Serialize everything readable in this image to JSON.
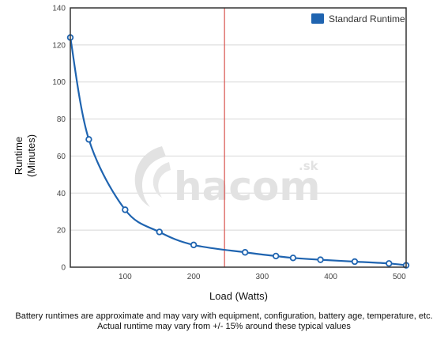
{
  "chart_data": {
    "type": "line",
    "xlabel": "Load (Watts)",
    "ylabel_lines": [
      "Runtime",
      "(Minutes)"
    ],
    "xlim": [
      20,
      510
    ],
    "ylim": [
      0,
      140
    ],
    "x_ticks": [
      100,
      200,
      300,
      400,
      500
    ],
    "y_ticks": [
      0,
      20,
      40,
      60,
      80,
      100,
      120,
      140
    ],
    "grid": "horizontal",
    "legend_position": "top-right",
    "marker_line_x": 245,
    "series": [
      {
        "name": "Standard Runtime",
        "color": "#1f64b0",
        "x": [
          20,
          47,
          100,
          150,
          200,
          275,
          320,
          345,
          385,
          435,
          485,
          510
        ],
        "y": [
          124,
          69,
          31,
          19,
          12,
          8,
          6,
          5,
          4,
          3,
          2,
          1
        ]
      }
    ]
  },
  "watermark": {
    "brand": "hacom",
    "suffix": ".sk"
  },
  "footnote": {
    "line1": "Battery runtimes are approximate and may vary with equipment, configuration, battery age, temperature, etc.",
    "line2": "Actual runtime may vary from +/- 15% around these typical values"
  },
  "colors": {
    "marker_line": "#d9534f",
    "grid": "#d8d8d8",
    "frame": "#333333"
  }
}
